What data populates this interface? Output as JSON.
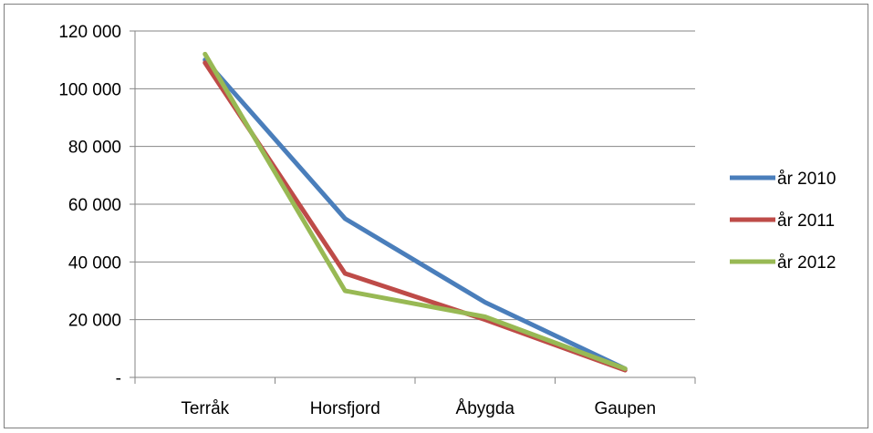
{
  "chart_data": {
    "type": "line",
    "title": "",
    "xlabel": "",
    "ylabel": "",
    "categories": [
      "Terråk",
      "Horsfjord",
      "Åbygda",
      "Gaupen"
    ],
    "ylim": [
      0,
      120000
    ],
    "yticks": [
      0,
      20000,
      40000,
      60000,
      80000,
      100000,
      120000
    ],
    "ytick_labels": [
      "-",
      "20 000",
      "40 000",
      "60 000",
      "80 000",
      "100 000",
      "120 000"
    ],
    "grid": true,
    "legend_position": "right",
    "series": [
      {
        "name": "år 2010",
        "color": "#4a7ebb",
        "values": [
          110000,
          55000,
          26000,
          3000
        ]
      },
      {
        "name": "år 2011",
        "color": "#be4b48",
        "values": [
          109000,
          36000,
          20000,
          2500
        ]
      },
      {
        "name": "år 2012",
        "color": "#98b954",
        "values": [
          112000,
          30000,
          21000,
          3000
        ]
      }
    ]
  }
}
